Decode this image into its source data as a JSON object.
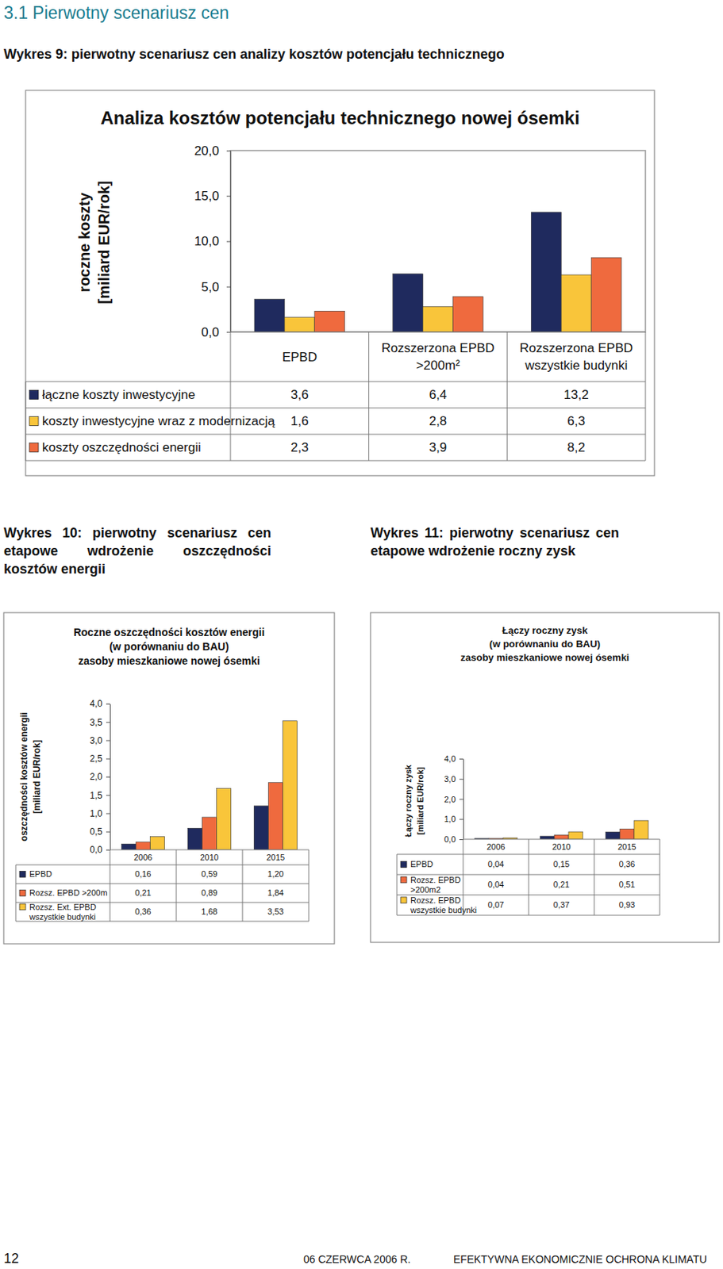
{
  "page": {
    "heading": "3.1 Pierwotny scenariusz cen",
    "captions": [
      "Wykres 9: pierwotny scenariusz cen analizy kosztów potencjału technicznego",
      "Wykres 10: pierwotny scenariusz cen etapowe wdrożenie oszczędności kosztów energii",
      "Wykres 11: pierwotny scenariusz cen etapowe wdrożenie roczny zysk"
    ],
    "footer": [
      "12",
      "06 CZERWCA 2006 R.",
      "EFEKTYWNA EKONOMICZNIE OCHRONA KLIMATU"
    ]
  },
  "chart_data": [
    {
      "type": "bar",
      "title": "Analiza kosztów potencjału technicznego nowej ósemki",
      "y_label": "roczne koszty\n[miliard EUR/rok]",
      "categories": [
        "EPBD",
        "Rozszerzona EPBD\n>200m²",
        "Rozszerzona EPBD\nwszystkie budynki"
      ],
      "series": [
        {
          "name": "łączne koszty inwestycyjne",
          "color": "#1f2a5e",
          "values": [
            3.6,
            6.4,
            13.2
          ],
          "value_labels": [
            "3,6",
            "6,4",
            "13,2"
          ]
        },
        {
          "name": "koszty inwestycyjne wraz z modernizacją",
          "color": "#f9c53a",
          "values": [
            1.6,
            2.8,
            6.3
          ],
          "value_labels": [
            "1,6",
            "2,8",
            "6,3"
          ]
        },
        {
          "name": "koszty oszczędności energii",
          "color": "#ef6a3e",
          "values": [
            2.3,
            3.9,
            8.2
          ],
          "value_labels": [
            "2,3",
            "3,9",
            "8,2"
          ]
        }
      ],
      "ylim": [
        0,
        20
      ],
      "yticks": [
        {
          "value": 0,
          "label": "0,0"
        },
        {
          "value": 5,
          "label": "5,0"
        },
        {
          "value": 10,
          "label": "10,0"
        },
        {
          "value": 15,
          "label": "15,0"
        },
        {
          "value": 20,
          "label": "20,0"
        }
      ],
      "grid": false,
      "legend": "bottom"
    },
    {
      "type": "bar",
      "title": "Roczne oszczędności kosztów energii\n(w porównaniu do BAU)\nzasoby mieszkaniowe nowej ósemki",
      "y_label": "oszczędności kosztów energii\n[miliard EUR/rok]",
      "categories": [
        "2006",
        "2010",
        "2015"
      ],
      "series": [
        {
          "name": "EPBD",
          "color": "#1f2a5e",
          "values": [
            0.16,
            0.59,
            1.2
          ],
          "value_labels": [
            "0,16",
            "0,59",
            "1,20"
          ]
        },
        {
          "name": "Rozsz. EPBD >200m",
          "color": "#ef6a3e",
          "values": [
            0.21,
            0.89,
            1.84
          ],
          "value_labels": [
            "0,21",
            "0,89",
            "1,84"
          ]
        },
        {
          "name": "Rozsz. Ext. EPBD\nwszystkie budynki",
          "color": "#f9c53a",
          "values": [
            0.36,
            1.68,
            3.53
          ],
          "value_labels": [
            "0,36",
            "1,68",
            "3,53"
          ]
        }
      ],
      "ylim": [
        0,
        4
      ],
      "yticks": [
        {
          "value": 0,
          "label": "0,0"
        },
        {
          "value": 0.5,
          "label": "0,5"
        },
        {
          "value": 1,
          "label": "1,0"
        },
        {
          "value": 1.5,
          "label": "1,5"
        },
        {
          "value": 2,
          "label": "2,0"
        },
        {
          "value": 2.5,
          "label": "2,5"
        },
        {
          "value": 3,
          "label": "3,0"
        },
        {
          "value": 3.5,
          "label": "3,5"
        },
        {
          "value": 4,
          "label": "4,0"
        }
      ],
      "grid": false,
      "legend": "bottom"
    },
    {
      "type": "bar",
      "title": "Łączy roczny zysk\n(w porównaniu do BAU)\nzasoby mieszkaniowe nowej ósemki",
      "y_label": "Łączy roczny zysk\n[miliard EUR/rok]",
      "categories": [
        "2006",
        "2010",
        "2015"
      ],
      "series": [
        {
          "name": "EPBD",
          "color": "#1f2a5e",
          "values": [
            0.04,
            0.15,
            0.36
          ],
          "value_labels": [
            "0,04",
            "0,15",
            "0,36"
          ]
        },
        {
          "name": "Rozsz. EPBD\n>200m2",
          "color": "#ef6a3e",
          "values": [
            0.04,
            0.21,
            0.51
          ],
          "value_labels": [
            "0,04",
            "0,21",
            "0,51"
          ]
        },
        {
          "name": "Rozsz. EPBD\nwszystkie budynki",
          "color": "#f9c53a",
          "values": [
            0.07,
            0.37,
            0.93
          ],
          "value_labels": [
            "0,07",
            "0,37",
            "0,93"
          ]
        }
      ],
      "ylim": [
        0,
        4
      ],
      "yticks": [
        {
          "value": 0,
          "label": "0,0"
        },
        {
          "value": 1,
          "label": "1,0"
        },
        {
          "value": 2,
          "label": "2,0"
        },
        {
          "value": 3,
          "label": "3,0"
        },
        {
          "value": 4,
          "label": "4,0"
        }
      ],
      "grid": false,
      "legend": "bottom"
    }
  ]
}
